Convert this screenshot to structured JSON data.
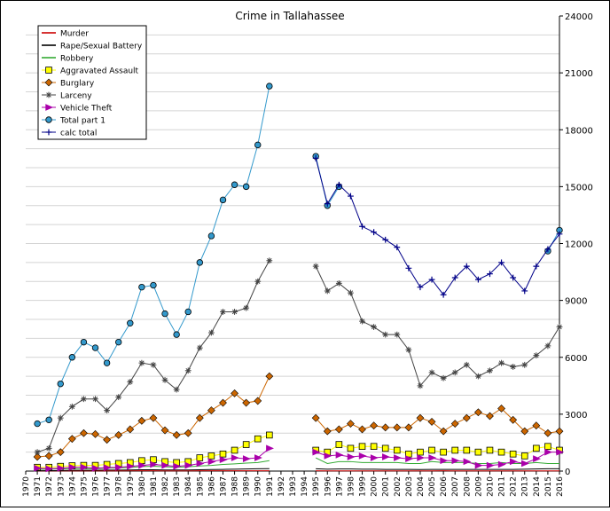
{
  "chart_data": {
    "type": "line",
    "title": "Crime in Tallahassee",
    "xlabel": "",
    "ylabel": "",
    "xlim": [
      1970,
      2016
    ],
    "ylim": [
      0,
      24000
    ],
    "x_ticks": [
      "1970",
      "1971",
      "1972",
      "1973",
      "1974",
      "1975",
      "1976",
      "1977",
      "1978",
      "1979",
      "1980",
      "1981",
      "1982",
      "1983",
      "1984",
      "1985",
      "1986",
      "1987",
      "1988",
      "1989",
      "1990",
      "1991",
      "1992",
      "1993",
      "1994",
      "1995",
      "1996",
      "1997",
      "1998",
      "1999",
      "2000",
      "2001",
      "2002",
      "2003",
      "2004",
      "2005",
      "2006",
      "2007",
      "2008",
      "2009",
      "2010",
      "2011",
      "2012",
      "2013",
      "2014",
      "2015",
      "2016"
    ],
    "y_ticks": [
      "0",
      "3000",
      "6000",
      "9000",
      "12000",
      "15000",
      "18000",
      "21000",
      "24000"
    ],
    "y_axis_side": "right",
    "grid": "horizontal",
    "legend_position": "top-left",
    "series": [
      {
        "name": "Murder",
        "color": "#cc0000",
        "marker": "none",
        "x": [
          1971,
          1972,
          1973,
          1974,
          1975,
          1976,
          1977,
          1978,
          1979,
          1980,
          1981,
          1982,
          1983,
          1984,
          1985,
          1986,
          1987,
          1988,
          1989,
          1990,
          1991,
          1995,
          1996,
          1997,
          1998,
          1999,
          2000,
          2001,
          2002,
          2003,
          2004,
          2005,
          2006,
          2007,
          2008,
          2009,
          2010,
          2011,
          2012,
          2013,
          2014,
          2015,
          2016
        ],
        "y": [
          10,
          10,
          12,
          10,
          12,
          10,
          12,
          12,
          15,
          15,
          15,
          12,
          12,
          12,
          15,
          15,
          15,
          15,
          15,
          18,
          18,
          15,
          12,
          12,
          12,
          12,
          12,
          12,
          12,
          12,
          10,
          12,
          15,
          12,
          12,
          12,
          12,
          12,
          10,
          10,
          12,
          12,
          12
        ]
      },
      {
        "name": "Rape/Sexual Battery",
        "color": "#000000",
        "marker": "none",
        "x": [
          1971,
          1972,
          1973,
          1974,
          1975,
          1976,
          1977,
          1978,
          1979,
          1980,
          1981,
          1982,
          1983,
          1984,
          1985,
          1986,
          1987,
          1988,
          1989,
          1990,
          1991,
          1995,
          1996,
          1997,
          1998,
          1999,
          2000,
          2001,
          2002,
          2003,
          2004,
          2005,
          2006,
          2007,
          2008,
          2009,
          2010,
          2011,
          2012,
          2013,
          2014,
          2015,
          2016
        ],
        "y": [
          20,
          20,
          30,
          40,
          40,
          40,
          50,
          50,
          60,
          70,
          70,
          60,
          60,
          60,
          70,
          80,
          90,
          100,
          110,
          120,
          130,
          120,
          100,
          110,
          110,
          100,
          100,
          90,
          90,
          90,
          80,
          90,
          90,
          90,
          90,
          90,
          90,
          90,
          90,
          100,
          110,
          120,
          120
        ]
      },
      {
        "name": "Robbery",
        "color": "#33aa33",
        "marker": "none",
        "x": [
          1971,
          1972,
          1973,
          1974,
          1975,
          1976,
          1977,
          1978,
          1979,
          1980,
          1981,
          1982,
          1983,
          1984,
          1985,
          1986,
          1987,
          1988,
          1989,
          1990,
          1991,
          1995,
          1996,
          1997,
          1998,
          1999,
          2000,
          2001,
          2002,
          2003,
          2004,
          2005,
          2006,
          2007,
          2008,
          2009,
          2010,
          2011,
          2012,
          2013,
          2014,
          2015,
          2016
        ],
        "y": [
          100,
          100,
          120,
          130,
          130,
          120,
          150,
          170,
          190,
          240,
          260,
          230,
          200,
          230,
          270,
          300,
          350,
          380,
          420,
          450,
          550,
          700,
          400,
          500,
          500,
          450,
          450,
          450,
          450,
          400,
          400,
          500,
          450,
          450,
          450,
          400,
          400,
          450,
          400,
          400,
          450,
          400,
          400
        ]
      },
      {
        "name": "Aggravated Assault",
        "color": "#ffff00",
        "marker": "square",
        "x": [
          1971,
          1972,
          1973,
          1974,
          1975,
          1976,
          1977,
          1978,
          1979,
          1980,
          1981,
          1982,
          1983,
          1984,
          1985,
          1986,
          1987,
          1988,
          1989,
          1990,
          1991,
          1995,
          1996,
          1997,
          1998,
          1999,
          2000,
          2001,
          2002,
          2003,
          2004,
          2005,
          2006,
          2007,
          2008,
          2009,
          2010,
          2011,
          2012,
          2013,
          2014,
          2015,
          2016
        ],
        "y": [
          200,
          200,
          250,
          280,
          300,
          300,
          350,
          400,
          450,
          550,
          600,
          500,
          450,
          500,
          700,
          800,
          900,
          1100,
          1400,
          1700,
          1900,
          1100,
          1000,
          1400,
          1200,
          1300,
          1300,
          1200,
          1100,
          900,
          1000,
          1100,
          1000,
          1100,
          1100,
          1000,
          1100,
          1000,
          900,
          800,
          1200,
          1300,
          1100
        ]
      },
      {
        "name": "Burglary",
        "color": "#cc6600",
        "marker": "diamond",
        "x": [
          1971,
          1972,
          1973,
          1974,
          1975,
          1976,
          1977,
          1978,
          1979,
          1980,
          1981,
          1982,
          1983,
          1984,
          1985,
          1986,
          1987,
          1988,
          1989,
          1990,
          1991,
          1995,
          1996,
          1997,
          1998,
          1999,
          2000,
          2001,
          2002,
          2003,
          2004,
          2005,
          2006,
          2007,
          2008,
          2009,
          2010,
          2011,
          2012,
          2013,
          2014,
          2015,
          2016
        ],
        "y": [
          750,
          800,
          1000,
          1700,
          2000,
          1950,
          1650,
          1900,
          2200,
          2650,
          2800,
          2150,
          1900,
          2000,
          2800,
          3200,
          3600,
          4100,
          3600,
          3700,
          5000,
          2800,
          2100,
          2200,
          2500,
          2200,
          2400,
          2300,
          2300,
          2300,
          2800,
          2600,
          2100,
          2500,
          2800,
          3100,
          2900,
          3300,
          2700,
          2100,
          2400,
          2000,
          2100
        ]
      },
      {
        "name": "Larceny",
        "color": "#444444",
        "marker": "asterisk",
        "x": [
          1971,
          1972,
          1973,
          1974,
          1975,
          1976,
          1977,
          1978,
          1979,
          1980,
          1981,
          1982,
          1983,
          1984,
          1985,
          1986,
          1987,
          1988,
          1989,
          1990,
          1991,
          1995,
          1996,
          1997,
          1998,
          1999,
          2000,
          2001,
          2002,
          2003,
          2004,
          2005,
          2006,
          2007,
          2008,
          2009,
          2010,
          2011,
          2012,
          2013,
          2014,
          2015,
          2016
        ],
        "y": [
          1000,
          1200,
          2800,
          3400,
          3800,
          3800,
          3200,
          3900,
          4700,
          5700,
          5600,
          4800,
          4300,
          5300,
          6500,
          7300,
          8400,
          8400,
          8600,
          10000,
          11100,
          10800,
          9500,
          9900,
          9400,
          7900,
          7600,
          7200,
          7200,
          6400,
          4500,
          5200,
          4900,
          5200,
          5600,
          5000,
          5300,
          5700,
          5500,
          5600,
          6100,
          6600,
          7600
        ]
      },
      {
        "name": "Vehicle Theft",
        "color": "#aa00aa",
        "marker": "triangle",
        "x": [
          1971,
          1972,
          1973,
          1974,
          1975,
          1976,
          1977,
          1978,
          1979,
          1980,
          1981,
          1982,
          1983,
          1984,
          1985,
          1986,
          1987,
          1988,
          1989,
          1990,
          1991,
          1995,
          1996,
          1997,
          1998,
          1999,
          2000,
          2001,
          2002,
          2003,
          2004,
          2005,
          2006,
          2007,
          2008,
          2009,
          2010,
          2011,
          2012,
          2013,
          2014,
          2015,
          2016
        ],
        "y": [
          150,
          120,
          150,
          200,
          200,
          150,
          180,
          200,
          250,
          300,
          350,
          300,
          250,
          300,
          400,
          500,
          600,
          700,
          650,
          700,
          1200,
          1000,
          800,
          850,
          750,
          800,
          700,
          750,
          700,
          650,
          700,
          700,
          550,
          550,
          500,
          300,
          300,
          350,
          500,
          400,
          650,
          1000,
          1000
        ]
      },
      {
        "name": "Total part 1",
        "color": "#3399cc",
        "marker": "circle",
        "x": [
          1971,
          1972,
          1973,
          1974,
          1975,
          1976,
          1977,
          1978,
          1979,
          1980,
          1981,
          1982,
          1983,
          1984,
          1985,
          1986,
          1987,
          1988,
          1989,
          1990,
          1991,
          1995,
          1996,
          1997,
          2015,
          2016
        ],
        "y": [
          2500,
          2700,
          4600,
          6000,
          6800,
          6500,
          5700,
          6800,
          7800,
          9700,
          9800,
          8300,
          7200,
          8400,
          11000,
          12400,
          14300,
          15100,
          15000,
          17200,
          20300,
          16600,
          14000,
          15000,
          11600,
          12700
        ]
      },
      {
        "name": "calc total",
        "color": "#000088",
        "marker": "cross",
        "x": [
          1995,
          1996,
          1997,
          1998,
          1999,
          2000,
          2001,
          2002,
          2003,
          2004,
          2005,
          2006,
          2007,
          2008,
          2009,
          2010,
          2011,
          2012,
          2013,
          2014,
          2015,
          2016
        ],
        "y": [
          16500,
          14100,
          15100,
          14500,
          12900,
          12600,
          12200,
          11800,
          10700,
          9700,
          10100,
          9300,
          10200,
          10800,
          10100,
          10400,
          11000,
          10200,
          9500,
          10800,
          11700,
          12500
        ]
      }
    ]
  }
}
